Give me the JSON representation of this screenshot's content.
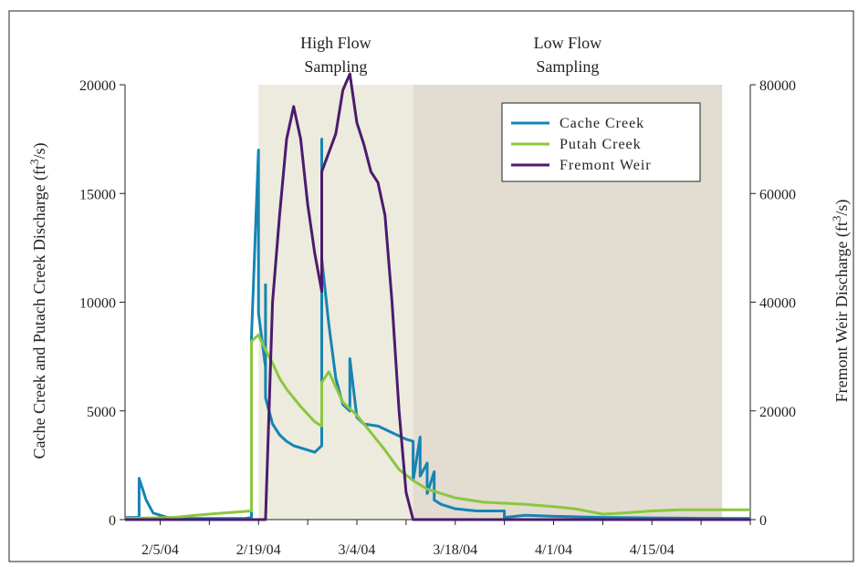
{
  "chart_data": {
    "type": "line",
    "xlabel": "",
    "ylabel": "Cache Creek and Putach Creek Discharge (ft³/s)",
    "y2label": "Fremont Weir Discharge (ft³/s)",
    "x_ticks": [
      "2/5/04",
      "2/19/04",
      "3/4/04",
      "3/18/04",
      "4/1/04",
      "4/15/04"
    ],
    "ylim": [
      0,
      20000
    ],
    "y2lim": [
      0,
      80000
    ],
    "y_ticks": [
      "0",
      "5000",
      "10000",
      "15000",
      "20000"
    ],
    "y2_ticks": [
      "0",
      "20000",
      "40000",
      "60000",
      "80000"
    ],
    "xlim": [
      "2004-01-31",
      "2004-04-29"
    ],
    "legend_position": "top-right",
    "bands": [
      {
        "label_line1": "High Flow",
        "label_line2": "Sampling",
        "start": "2004-02-19",
        "end": "2004-03-12",
        "color": "#ecebdd"
      },
      {
        "label_line1": "Low Flow",
        "label_line2": "Sampling",
        "start": "2004-03-12",
        "end": "2004-04-25",
        "color": "#e3dcd1"
      }
    ],
    "series": [
      {
        "name": "Cache Creek",
        "axis": "left",
        "color": "#1684b4",
        "points": [
          [
            "2004-01-31",
            100
          ],
          [
            "2004-02-02",
            100
          ],
          [
            "2004-02-02",
            1900
          ],
          [
            "2004-02-03",
            900
          ],
          [
            "2004-02-04",
            300
          ],
          [
            "2004-02-06",
            100
          ],
          [
            "2004-02-09",
            50
          ],
          [
            "2004-02-17",
            50
          ],
          [
            "2004-02-18",
            100
          ],
          [
            "2004-02-18",
            6000
          ],
          [
            "2004-02-18",
            5000
          ],
          [
            "2004-02-18",
            8400
          ],
          [
            "2004-02-19",
            17000
          ],
          [
            "2004-02-19",
            14000
          ],
          [
            "2004-02-19",
            9500
          ],
          [
            "2004-02-20",
            7000
          ],
          [
            "2004-02-20",
            10800
          ],
          [
            "2004-02-20",
            5600
          ],
          [
            "2004-02-21",
            4400
          ],
          [
            "2004-02-22",
            3900
          ],
          [
            "2004-02-23",
            3600
          ],
          [
            "2004-02-24",
            3400
          ],
          [
            "2004-02-26",
            3200
          ],
          [
            "2004-02-27",
            3100
          ],
          [
            "2004-02-28",
            3400
          ],
          [
            "2004-02-28",
            17500
          ],
          [
            "2004-02-28",
            12000
          ],
          [
            "2004-02-29",
            9000
          ],
          [
            "2004-03-01",
            6500
          ],
          [
            "2004-03-02",
            5300
          ],
          [
            "2004-03-03",
            5000
          ],
          [
            "2004-03-03",
            7400
          ],
          [
            "2004-03-04",
            4700
          ],
          [
            "2004-03-05",
            4400
          ],
          [
            "2004-03-07",
            4300
          ],
          [
            "2004-03-09",
            4000
          ],
          [
            "2004-03-11",
            3700
          ],
          [
            "2004-03-12",
            3600
          ],
          [
            "2004-03-12",
            1800
          ],
          [
            "2004-03-13",
            3800
          ],
          [
            "2004-03-13",
            2000
          ],
          [
            "2004-03-14",
            2600
          ],
          [
            "2004-03-14",
            1200
          ],
          [
            "2004-03-15",
            2200
          ],
          [
            "2004-03-15",
            900
          ],
          [
            "2004-03-16",
            700
          ],
          [
            "2004-03-18",
            500
          ],
          [
            "2004-03-21",
            400
          ],
          [
            "2004-03-25",
            400
          ],
          [
            "2004-03-25",
            100
          ],
          [
            "2004-03-28",
            200
          ],
          [
            "2004-04-01",
            150
          ],
          [
            "2004-04-08",
            100
          ],
          [
            "2004-04-15",
            80
          ],
          [
            "2004-04-22",
            60
          ],
          [
            "2004-04-29",
            50
          ]
        ]
      },
      {
        "name": "Putah Creek",
        "axis": "left",
        "color": "#8cc63f",
        "points": [
          [
            "2004-01-31",
            50
          ],
          [
            "2004-02-07",
            100
          ],
          [
            "2004-02-10",
            200
          ],
          [
            "2004-02-14",
            300
          ],
          [
            "2004-02-18",
            400
          ],
          [
            "2004-02-18",
            8200
          ],
          [
            "2004-02-19",
            8500
          ],
          [
            "2004-02-20",
            7800
          ],
          [
            "2004-02-21",
            7200
          ],
          [
            "2004-02-22",
            6500
          ],
          [
            "2004-02-23",
            6000
          ],
          [
            "2004-02-25",
            5200
          ],
          [
            "2004-02-27",
            4500
          ],
          [
            "2004-02-28",
            4300
          ],
          [
            "2004-02-28",
            6300
          ],
          [
            "2004-02-29",
            6800
          ],
          [
            "2004-03-01",
            6100
          ],
          [
            "2004-03-02",
            5400
          ],
          [
            "2004-03-04",
            4800
          ],
          [
            "2004-03-06",
            4000
          ],
          [
            "2004-03-08",
            3200
          ],
          [
            "2004-03-10",
            2300
          ],
          [
            "2004-03-12",
            1800
          ],
          [
            "2004-03-14",
            1400
          ],
          [
            "2004-03-18",
            1000
          ],
          [
            "2004-03-22",
            800
          ],
          [
            "2004-03-28",
            700
          ],
          [
            "2004-04-01",
            600
          ],
          [
            "2004-04-04",
            500
          ],
          [
            "2004-04-08",
            250
          ],
          [
            "2004-04-11",
            300
          ],
          [
            "2004-04-15",
            400
          ],
          [
            "2004-04-19",
            450
          ],
          [
            "2004-04-23",
            450
          ],
          [
            "2004-04-29",
            450
          ]
        ]
      },
      {
        "name": "Fremont Weir",
        "axis": "right",
        "color": "#4b1b6e",
        "points": [
          [
            "2004-01-31",
            0
          ],
          [
            "2004-02-20",
            0
          ],
          [
            "2004-02-21",
            40000
          ],
          [
            "2004-02-22",
            56000
          ],
          [
            "2004-02-23",
            70000
          ],
          [
            "2004-02-24",
            76000
          ],
          [
            "2004-02-25",
            70000
          ],
          [
            "2004-02-26",
            58000
          ],
          [
            "2004-02-27",
            49000
          ],
          [
            "2004-02-28",
            42000
          ],
          [
            "2004-02-28",
            64000
          ],
          [
            "2004-03-01",
            71000
          ],
          [
            "2004-03-02",
            79000
          ],
          [
            "2004-03-03",
            82000
          ],
          [
            "2004-03-04",
            73000
          ],
          [
            "2004-03-05",
            69000
          ],
          [
            "2004-03-06",
            64000
          ],
          [
            "2004-03-07",
            62000
          ],
          [
            "2004-03-08",
            56000
          ],
          [
            "2004-03-09",
            40000
          ],
          [
            "2004-03-10",
            20000
          ],
          [
            "2004-03-11",
            5000
          ],
          [
            "2004-03-12",
            0
          ],
          [
            "2004-04-29",
            0
          ]
        ]
      }
    ]
  }
}
